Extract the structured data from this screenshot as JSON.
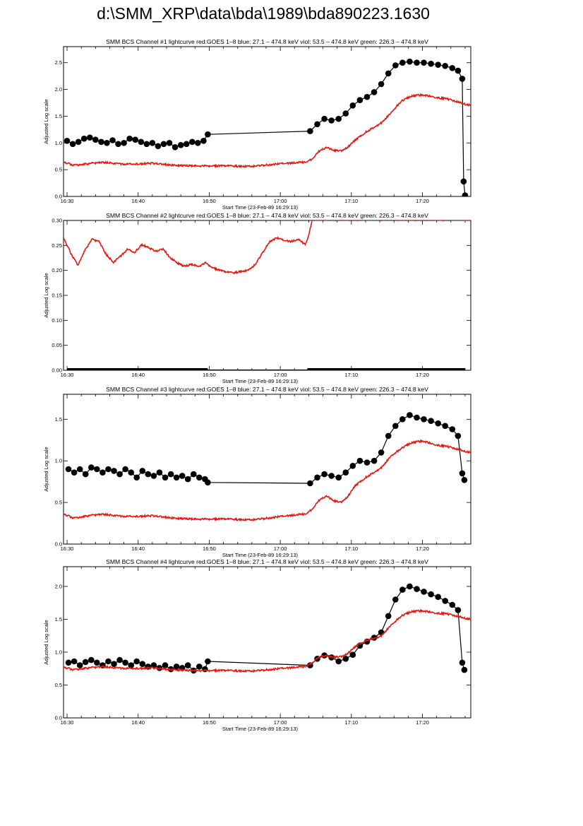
{
  "page": {
    "title": "d:\\SMM_XRP\\data\\bda\\1989\\bda890223.1630"
  },
  "colors": {
    "goes": "#e8160c",
    "bcs": "#000000",
    "axis": "#000000"
  },
  "chart_data": [
    {
      "type": "line",
      "title": "SMM BCS Channel #1 lightcurve  red:GOES 1–8  blue: 27.1 – 474.8 keV  viol: 53.5 – 474.8 keV  green: 226.3 – 474.8 keV",
      "xlabel": "Start Time (23-Feb-89 16:29:13)",
      "ylabel": "Adjusted Log scale",
      "xlim": [
        29.5,
        86.8
      ],
      "ylim": [
        0.0,
        2.8
      ],
      "xticks": [
        30,
        40,
        50,
        60,
        70,
        80
      ],
      "xtick_labels": [
        "16:30",
        "16:40",
        "16:50",
        "17:00",
        "17:10",
        "17:20"
      ],
      "yticks": [
        0.0,
        0.5,
        1.0,
        1.5,
        2.0,
        2.5
      ],
      "ytick_labels": [
        "0.0",
        "0.5",
        "1.0",
        "1.5",
        "2.0",
        "2.5"
      ],
      "series": [
        {
          "name": "BCS",
          "style": "points",
          "x": [
            30,
            30.8,
            31.6,
            32.4,
            33.2,
            34.0,
            34.8,
            35.6,
            36.4,
            37.2,
            38.0,
            38.8,
            39.6,
            40.4,
            41.2,
            42.0,
            42.8,
            43.6,
            44.4,
            45.2,
            46.0,
            46.8,
            47.6,
            48.4,
            49.2,
            49.8,
            64.2,
            65.2,
            66.2,
            67.2,
            68.2,
            69.2,
            70.2,
            71.2,
            72.2,
            73.2,
            74.2,
            75.2,
            76.2,
            77.2,
            78.2,
            79.2,
            80.2,
            81.2,
            82.2,
            83.2,
            84.2,
            85.0,
            85.6,
            85.8,
            86.0
          ],
          "y": [
            1.04,
            0.98,
            1.02,
            1.08,
            1.1,
            1.06,
            1.02,
            1.0,
            1.05,
            0.98,
            1.0,
            1.08,
            1.06,
            1.02,
            0.98,
            1.0,
            0.94,
            0.98,
            1.0,
            0.92,
            0.96,
            0.98,
            1.02,
            1.0,
            1.04,
            1.16,
            1.22,
            1.35,
            1.45,
            1.42,
            1.45,
            1.55,
            1.7,
            1.8,
            1.86,
            1.95,
            2.1,
            2.3,
            2.45,
            2.5,
            2.52,
            2.5,
            2.5,
            2.48,
            2.46,
            2.44,
            2.4,
            2.35,
            2.2,
            0.28,
            0.02
          ]
        },
        {
          "name": "GOES",
          "style": "line",
          "x": [
            29.5,
            31,
            33,
            35,
            38,
            42,
            45,
            48,
            52,
            56,
            59,
            62,
            63.5,
            64.5,
            65.5,
            66.5,
            67.5,
            68.5,
            69.5,
            70.5,
            72,
            74,
            75.5,
            77,
            78.5,
            80,
            81.5,
            83.5,
            86.8
          ],
          "y": [
            0.64,
            0.58,
            0.61,
            0.64,
            0.6,
            0.62,
            0.58,
            0.57,
            0.57,
            0.56,
            0.6,
            0.63,
            0.64,
            0.7,
            0.85,
            0.92,
            0.86,
            0.85,
            0.92,
            1.05,
            1.2,
            1.35,
            1.55,
            1.78,
            1.88,
            1.9,
            1.86,
            1.82,
            1.7
          ]
        }
      ]
    },
    {
      "type": "line",
      "title": "SMM BCS Channel #2 lightcurve  red:GOES 1–8  blue: 27.1 – 474.8 keV  viol: 53.5 – 474.8 keV  green: 226.3 – 474.8 keV",
      "xlabel": "Start Time (23-Feb-89 16:29:13)",
      "ylabel": "Adjusted Log scale",
      "xlim": [
        29.5,
        86.8
      ],
      "ylim": [
        0.0,
        0.3
      ],
      "xticks": [
        30,
        40,
        50,
        60,
        70,
        80
      ],
      "xtick_labels": [
        "16:30",
        "16:40",
        "16:50",
        "17:00",
        "17:10",
        "17:20"
      ],
      "yticks": [
        0.0,
        0.05,
        0.1,
        0.15,
        0.2,
        0.25,
        0.3
      ],
      "ytick_labels": [
        "0.00",
        "0.05",
        "0.10",
        "0.15",
        "0.20",
        "0.25",
        "0.30"
      ],
      "series": [
        {
          "name": "BCS",
          "style": "baseline",
          "segments": [
            [
              30,
              49.8
            ],
            [
              63.8,
              86
            ]
          ],
          "y": 0.0
        },
        {
          "name": "GOES",
          "style": "line",
          "x": [
            29.5,
            30.5,
            31.5,
            32.5,
            33.5,
            34.5,
            35.5,
            36.5,
            37.5,
            38.5,
            39.5,
            40.5,
            41.5,
            42.5,
            43.5,
            44.5,
            45.5,
            46.5,
            47.5,
            48.5,
            49.5,
            50.5,
            51.5,
            52.5,
            53.5,
            54.5,
            55.5,
            56.5,
            57.5,
            58.5,
            59.5,
            60.5,
            61.5,
            62.5,
            63.5,
            64.0,
            64.5
          ],
          "y": [
            0.265,
            0.235,
            0.21,
            0.24,
            0.262,
            0.258,
            0.232,
            0.216,
            0.228,
            0.242,
            0.236,
            0.252,
            0.245,
            0.238,
            0.243,
            0.225,
            0.215,
            0.208,
            0.212,
            0.208,
            0.215,
            0.205,
            0.2,
            0.196,
            0.195,
            0.198,
            0.2,
            0.212,
            0.235,
            0.258,
            0.265,
            0.26,
            0.258,
            0.262,
            0.252,
            0.27,
            0.302
          ]
        }
      ]
    },
    {
      "type": "line",
      "title": "SMM BCS Channel #3 lightcurve  red:GOES 1–8  blue: 27.1 – 474.8 keV  viol: 53.5 – 474.8 keV  green: 226.3 – 474.8 keV",
      "xlabel": "Start Time (23-Feb-89 16:29:13)",
      "ylabel": "Adjusted Log scale",
      "xlim": [
        29.5,
        86.8
      ],
      "ylim": [
        0.0,
        1.8
      ],
      "xticks": [
        30,
        40,
        50,
        60,
        70,
        80
      ],
      "xtick_labels": [
        "16:30",
        "16:40",
        "16:50",
        "17:00",
        "17:10",
        "17:20"
      ],
      "yticks": [
        0.0,
        0.5,
        1.0,
        1.5
      ],
      "ytick_labels": [
        "0.0",
        "0.5",
        "1.0",
        "1.5"
      ],
      "series": [
        {
          "name": "BCS",
          "style": "points",
          "x": [
            30.2,
            31.0,
            31.8,
            32.6,
            33.4,
            34.2,
            35.0,
            35.8,
            36.6,
            37.4,
            38.2,
            39.0,
            39.8,
            40.6,
            41.4,
            42.2,
            43.0,
            43.8,
            44.6,
            45.4,
            46.2,
            47.0,
            47.8,
            48.6,
            49.4,
            49.8,
            64.2,
            65.2,
            66.2,
            67.2,
            68.2,
            69.2,
            70.2,
            71.2,
            72.2,
            73.2,
            74.2,
            75.2,
            76.2,
            77.2,
            78.2,
            79.2,
            80.2,
            81.2,
            82.2,
            83.2,
            84.2,
            85.0,
            85.6,
            85.9
          ],
          "y": [
            0.9,
            0.86,
            0.9,
            0.84,
            0.92,
            0.9,
            0.86,
            0.9,
            0.88,
            0.84,
            0.9,
            0.86,
            0.8,
            0.88,
            0.84,
            0.82,
            0.86,
            0.8,
            0.84,
            0.8,
            0.82,
            0.78,
            0.84,
            0.8,
            0.78,
            0.74,
            0.73,
            0.8,
            0.84,
            0.82,
            0.8,
            0.86,
            0.94,
            1.0,
            0.98,
            1.0,
            1.1,
            1.3,
            1.42,
            1.5,
            1.55,
            1.52,
            1.5,
            1.48,
            1.45,
            1.42,
            1.38,
            1.3,
            0.85,
            0.77
          ]
        },
        {
          "name": "GOES",
          "style": "line",
          "x": [
            29.5,
            31,
            33,
            35,
            38,
            42,
            45,
            48,
            52,
            56,
            59,
            62,
            63.5,
            64.5,
            65.5,
            66.5,
            67.5,
            68.5,
            69.5,
            70.5,
            72,
            74,
            75.5,
            77,
            78.5,
            80,
            81.5,
            83.5,
            86.8
          ],
          "y": [
            0.36,
            0.31,
            0.34,
            0.36,
            0.33,
            0.34,
            0.31,
            0.3,
            0.3,
            0.29,
            0.32,
            0.35,
            0.36,
            0.42,
            0.53,
            0.58,
            0.52,
            0.5,
            0.57,
            0.7,
            0.8,
            0.9,
            1.05,
            1.15,
            1.22,
            1.24,
            1.2,
            1.17,
            1.1
          ]
        }
      ]
    },
    {
      "type": "line",
      "title": "SMM BCS Channel #4 lightcurve  red:GOES 1–8  blue: 27.1 – 474.8 keV  viol: 53.5 – 474.8 keV  green: 226.3 – 474.8 keV",
      "xlabel": "Start Time (23-Feb-89 16:29:13)",
      "ylabel": "Adjusted Log scale",
      "xlim": [
        29.5,
        86.8
      ],
      "ylim": [
        0.0,
        2.3
      ],
      "xticks": [
        30,
        40,
        50,
        60,
        70,
        80
      ],
      "xtick_labels": [
        "16:30",
        "16:40",
        "16:50",
        "17:00",
        "17:10",
        "17:20"
      ],
      "yticks": [
        0.0,
        0.5,
        1.0,
        1.5,
        2.0
      ],
      "ytick_labels": [
        "0.0",
        "0.5",
        "1.0",
        "1.5",
        "2.0"
      ],
      "series": [
        {
          "name": "BCS",
          "style": "points",
          "x": [
            30.2,
            31.0,
            31.8,
            32.6,
            33.4,
            34.2,
            35.0,
            35.8,
            36.6,
            37.4,
            38.2,
            39.0,
            39.8,
            40.6,
            41.4,
            42.2,
            43.0,
            43.8,
            44.6,
            45.4,
            46.2,
            47.0,
            47.8,
            48.6,
            49.4,
            49.8,
            64.2,
            65.2,
            66.2,
            67.2,
            68.2,
            69.2,
            70.2,
            71.2,
            72.2,
            73.2,
            74.2,
            75.2,
            76.2,
            77.2,
            78.2,
            79.2,
            80.2,
            81.2,
            82.2,
            83.2,
            84.2,
            85.0,
            85.6,
            85.9
          ],
          "y": [
            0.84,
            0.86,
            0.8,
            0.85,
            0.88,
            0.84,
            0.8,
            0.86,
            0.82,
            0.88,
            0.84,
            0.8,
            0.86,
            0.82,
            0.78,
            0.8,
            0.76,
            0.8,
            0.74,
            0.78,
            0.76,
            0.8,
            0.72,
            0.78,
            0.74,
            0.86,
            0.8,
            0.9,
            0.95,
            0.92,
            0.86,
            0.9,
            0.96,
            1.1,
            1.16,
            1.22,
            1.3,
            1.55,
            1.8,
            1.95,
            2.0,
            1.96,
            1.92,
            1.88,
            1.84,
            1.78,
            1.72,
            1.64,
            0.84,
            0.73
          ]
        },
        {
          "name": "GOES",
          "style": "line",
          "x": [
            29.5,
            31,
            33,
            35,
            38,
            42,
            45,
            48,
            52,
            56,
            59,
            62,
            63.5,
            64.5,
            65.5,
            66.5,
            67.5,
            68.5,
            69.5,
            70.5,
            72,
            74,
            75.5,
            77,
            78.5,
            80,
            81.5,
            83.5,
            86.8
          ],
          "y": [
            0.77,
            0.73,
            0.76,
            0.78,
            0.75,
            0.76,
            0.73,
            0.72,
            0.72,
            0.71,
            0.74,
            0.77,
            0.78,
            0.84,
            0.93,
            0.95,
            0.92,
            0.93,
            0.98,
            1.08,
            1.18,
            1.23,
            1.4,
            1.55,
            1.62,
            1.63,
            1.6,
            1.58,
            1.5
          ]
        }
      ]
    }
  ]
}
